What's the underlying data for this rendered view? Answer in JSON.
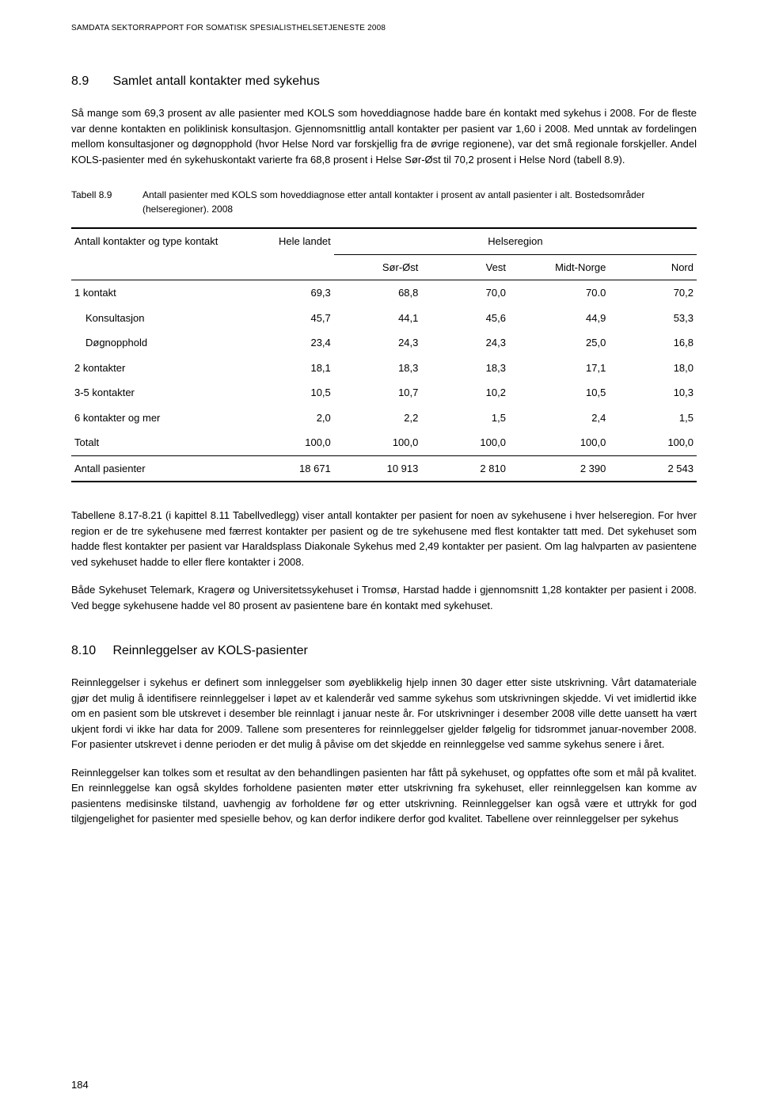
{
  "header": "SAMDATA SEKTORRAPPORT FOR SOMATISK SPESIALISTHELSETJENESTE 2008",
  "section89": {
    "number": "8.9",
    "title": "Samlet antall kontakter med sykehus",
    "para1": "Så mange som 69,3 prosent av alle pasienter med KOLS som hoveddiagnose hadde bare én kontakt med sykehus i 2008. For de fleste var denne kontakten en poliklinisk konsultasjon. Gjennomsnittlig antall kontakter per pasient var 1,60 i 2008. Med unntak av fordelingen mellom konsultasjoner og døgnopphold (hvor Helse Nord var forskjellig fra de øvrige regionene), var det små regionale forskjeller. Andel KOLS-pasienter med én sykehuskontakt varierte fra 68,8 prosent i Helse Sør-Øst til 70,2 prosent i Helse Nord (tabell 8.9)."
  },
  "table89": {
    "label": "Tabell 8.9",
    "caption": "Antall pasienter med KOLS som hoveddiagnose etter antall kontakter i prosent av antall pasienter i alt. Bostedsområder (helseregioner). 2008",
    "col_group_left": "Antall kontakter og type kontakt",
    "col_hele": "Hele landet",
    "col_region": "Helseregion",
    "subcols": [
      "Sør-Øst",
      "Vest",
      "Midt-Norge",
      "Nord"
    ],
    "rows": [
      {
        "label": "1 kontakt",
        "indent": false,
        "vals": [
          "69,3",
          "68,8",
          "70,0",
          "70.0",
          "70,2"
        ]
      },
      {
        "label": "Konsultasjon",
        "indent": true,
        "vals": [
          "45,7",
          "44,1",
          "45,6",
          "44,9",
          "53,3"
        ]
      },
      {
        "label": "Døgnopphold",
        "indent": true,
        "vals": [
          "23,4",
          "24,3",
          "24,3",
          "25,0",
          "16,8"
        ]
      },
      {
        "label": "2 kontakter",
        "indent": false,
        "vals": [
          "18,1",
          "18,3",
          "18,3",
          "17,1",
          "18,0"
        ]
      },
      {
        "label": "3-5 kontakter",
        "indent": false,
        "vals": [
          "10,5",
          "10,7",
          "10,2",
          "10,5",
          "10,3"
        ]
      },
      {
        "label": "6 kontakter og mer",
        "indent": false,
        "vals": [
          "2,0",
          "2,2",
          "1,5",
          "2,4",
          "1,5"
        ]
      },
      {
        "label": "Totalt",
        "indent": false,
        "vals": [
          "100,0",
          "100,0",
          "100,0",
          "100,0",
          "100,0"
        ]
      }
    ],
    "footer": {
      "label": "Antall pasienter",
      "vals": [
        "18 671",
        "10 913",
        "2 810",
        "2 390",
        "2 543"
      ]
    }
  },
  "afterTable": {
    "para1": "Tabellene 8.17-8.21 (i kapittel 8.11 Tabellvedlegg) viser antall kontakter per pasient for noen av sykehusene i hver helseregion. For hver region er de tre sykehusene med færrest kontakter per pasient og de tre sykehusene med flest kontakter tatt med. Det sykehuset som hadde flest kontakter per pasient var Haraldsplass Diakonale Sykehus med 2,49 kontakter per pasient. Om lag halvparten av pasientene ved sykehuset hadde to eller flere kontakter i 2008.",
    "para2": "Både Sykehuset Telemark, Kragerø og Universitetssykehuset i Tromsø, Harstad hadde i gjennomsnitt 1,28 kontakter per pasient i 2008. Ved begge sykehusene hadde vel 80 prosent av pasientene bare én kontakt med sykehuset."
  },
  "section810": {
    "number": "8.10",
    "title": "Reinnleggelser av KOLS-pasienter",
    "para1": "Reinnleggelser i sykehus er definert som innleggelser som øyeblikkelig hjelp innen 30 dager etter siste utskrivning. Vårt datamateriale gjør det mulig å identifisere reinnleggelser i løpet av et kalenderår ved samme sykehus som utskrivningen skjedde. Vi vet imidlertid ikke om en pasient som ble utskrevet i desember ble reinnlagt i januar neste år. For utskrivninger i desember 2008 ville dette uansett ha vært ukjent fordi vi ikke har data for 2009. Tallene som presenteres for reinnleggelser gjelder følgelig for tidsrommet januar-november 2008. For pasienter utskrevet i denne perioden er det mulig å påvise om det skjedde en reinnleggelse ved samme sykehus senere i året.",
    "para2": "Reinnleggelser kan tolkes som et resultat av den behandlingen pasienten har fått på sykehuset, og oppfattes ofte som et mål på kvalitet. En reinnleggelse kan også skyldes forholdene pasienten møter etter utskrivning fra sykehuset, eller reinnleggelsen kan komme av pasientens medisinske tilstand, uavhengig av forholdene før og etter utskrivning. Reinnleggelser kan også være et uttrykk for god tilgjengelighet for pasienter med spesielle behov, og kan derfor indikere derfor god kvalitet. Tabellene over reinnleggelser per sykehus"
  },
  "pageNumber": "184"
}
